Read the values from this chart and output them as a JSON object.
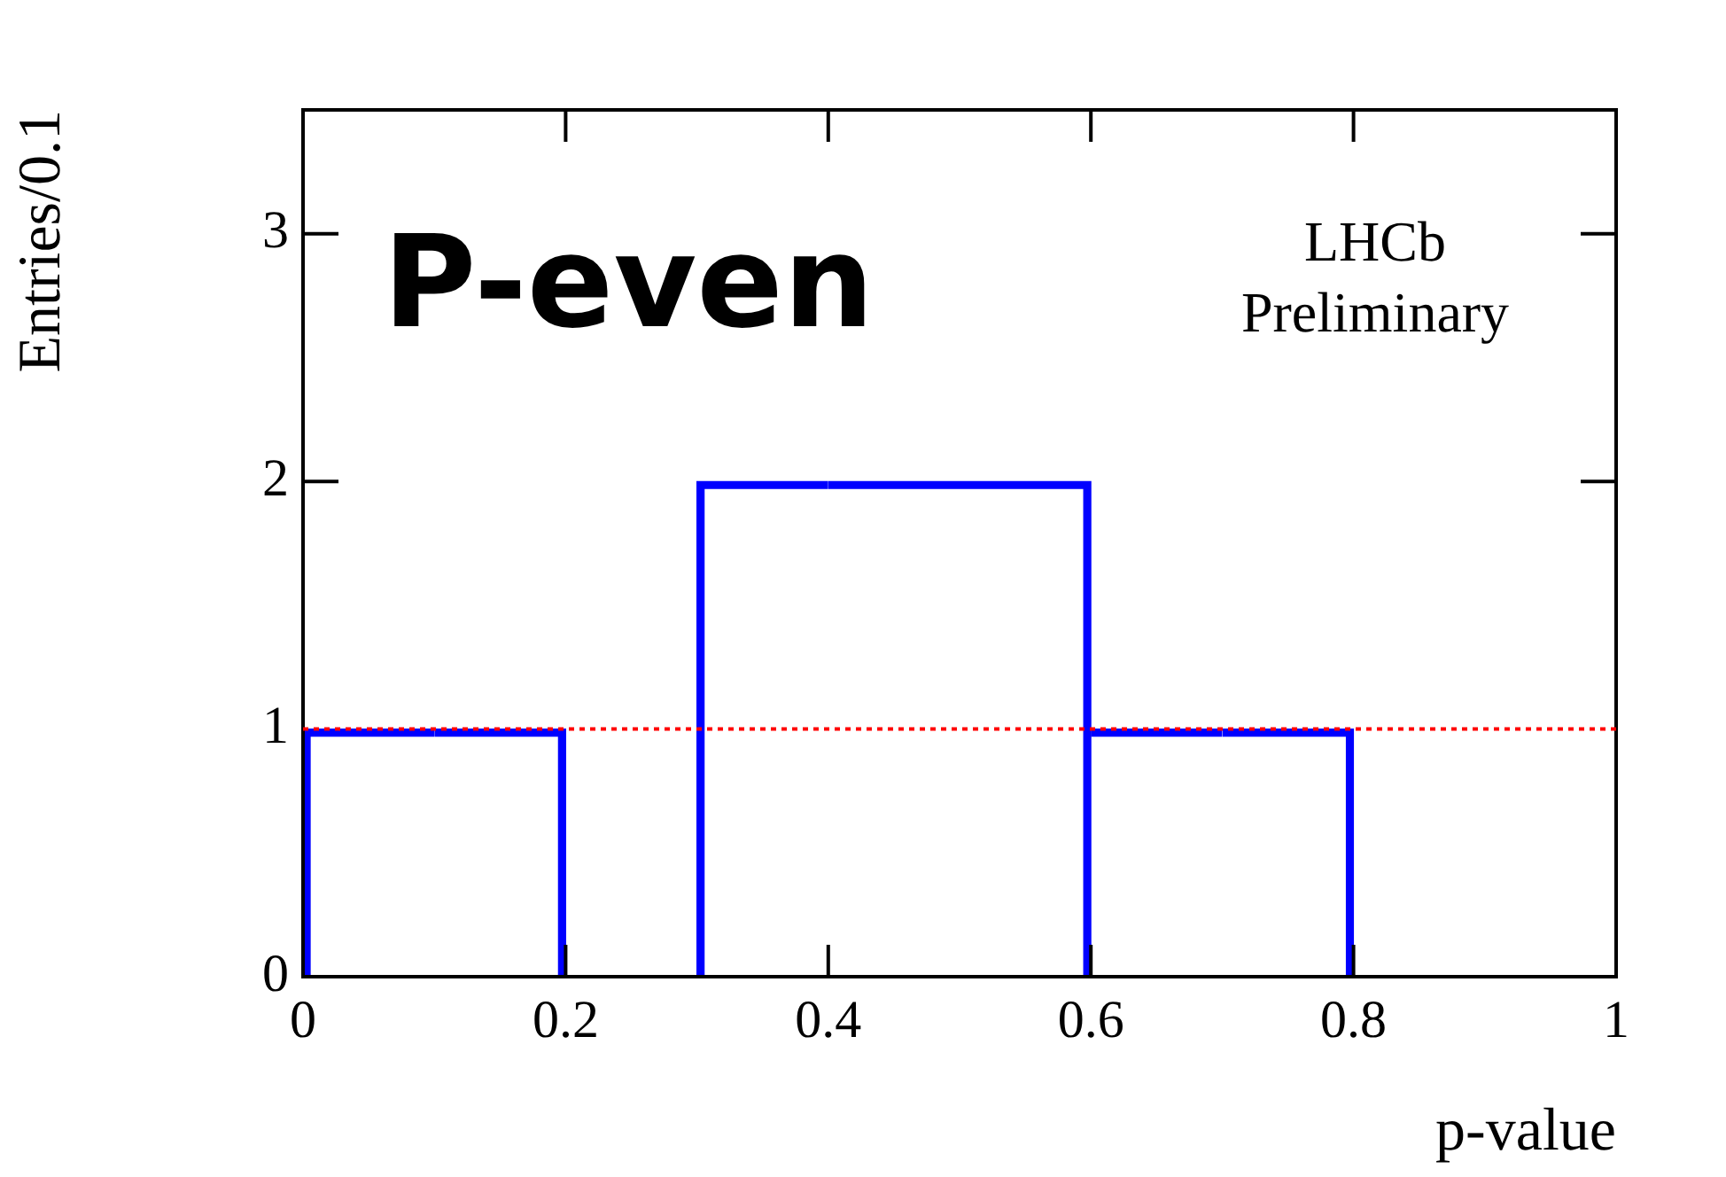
{
  "chart_data": {
    "type": "histogram",
    "xlabel": "p-value",
    "ylabel": "Entries/0.1",
    "bins": [
      0,
      0.1,
      0.2,
      0.3,
      0.4,
      0.5,
      0.6,
      0.7,
      0.8,
      0.9,
      1.0
    ],
    "values": [
      1,
      1,
      0,
      2,
      2,
      2,
      1,
      1,
      0,
      0
    ],
    "color": "#0000ff",
    "xlim": [
      0,
      1
    ],
    "xticks": [
      0,
      0.2,
      0.4,
      0.6,
      0.8,
      1
    ],
    "ylim": [
      0,
      3.5
    ],
    "yticks": [
      0,
      1,
      2,
      3
    ],
    "ref_lines": [
      {
        "axis": "y",
        "value": 1,
        "color": "#ff0000",
        "line_style": "dotted"
      }
    ],
    "annotations": [
      "P-even",
      "LHCb\nPreliminary"
    ]
  }
}
